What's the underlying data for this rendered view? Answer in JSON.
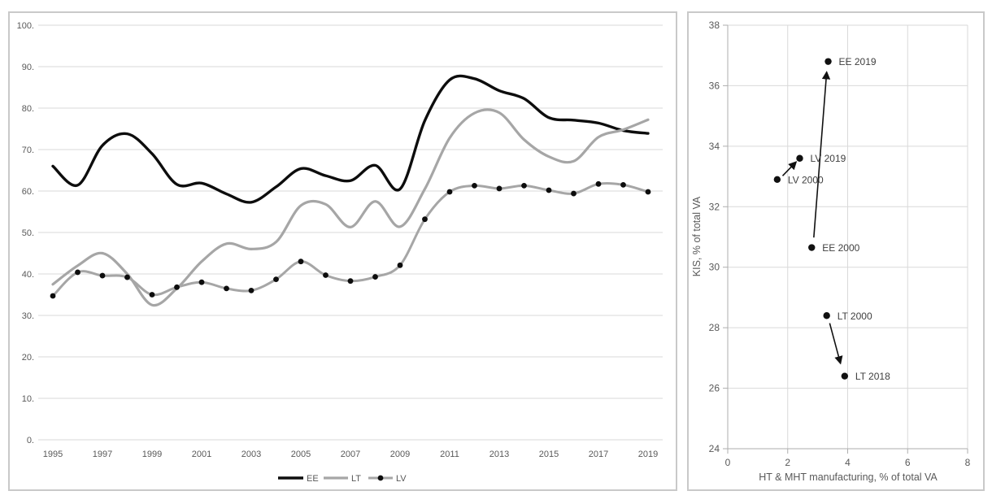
{
  "chart_data": [
    {
      "type": "line",
      "title": "",
      "xlabel": "",
      "ylabel": "",
      "ylim": [
        0,
        100
      ],
      "grid": true,
      "legend_position": "bottom-center",
      "x": [
        1995,
        1996,
        1997,
        1998,
        1999,
        2000,
        2001,
        2002,
        2003,
        2004,
        2005,
        2006,
        2007,
        2008,
        2009,
        2010,
        2011,
        2012,
        2013,
        2014,
        2015,
        2016,
        2017,
        2018,
        2019
      ],
      "xticks": [
        1995,
        1997,
        1999,
        2001,
        2003,
        2005,
        2007,
        2009,
        2011,
        2013,
        2015,
        2017,
        2019
      ],
      "yticks": [
        {
          "value": 100,
          "label": "100."
        },
        {
          "value": 90,
          "label": "90."
        },
        {
          "value": 80,
          "label": "80."
        },
        {
          "value": 70,
          "label": "70."
        },
        {
          "value": 60,
          "label": "60."
        },
        {
          "value": 50,
          "label": "50."
        },
        {
          "value": 40,
          "label": "40."
        },
        {
          "value": 30,
          "label": "30."
        },
        {
          "value": 20,
          "label": "20."
        },
        {
          "value": 10,
          "label": "10."
        },
        {
          "value": 0,
          "label": "0."
        }
      ],
      "series": [
        {
          "name": "EE",
          "color": "#0d0d0d",
          "width": 3.4,
          "marker": false,
          "values": [
            66,
            61.4,
            71,
            73.8,
            69,
            61.6,
            61.9,
            59.3,
            57.3,
            61,
            65.4,
            63.7,
            62.5,
            66.2,
            60.5,
            77,
            86.8,
            87.1,
            84.2,
            82.3,
            77.7,
            77.1,
            76.4,
            74.6,
            73.9
          ]
        },
        {
          "name": "LT",
          "color": "#a6a6a6",
          "width": 3.2,
          "marker": false,
          "values": [
            37.5,
            42,
            45,
            40,
            32.5,
            36.5,
            43,
            47.3,
            46,
            47.7,
            56.5,
            56.8,
            51.3,
            57.5,
            51.4,
            60.5,
            72.8,
            78.8,
            78.9,
            72.4,
            68.3,
            67.2,
            73,
            74.8,
            77.2
          ]
        },
        {
          "name": "LV",
          "color": "#a6a6a6",
          "width": 3,
          "marker": true,
          "marker_color": "#0d0d0d",
          "values": [
            34.7,
            40.4,
            39.6,
            39.2,
            35,
            36.8,
            38,
            36.5,
            36,
            38.7,
            43,
            39.7,
            38.3,
            39.3,
            42.1,
            53.2,
            59.8,
            61.3,
            60.6,
            61.3,
            60.2,
            59.4,
            61.7,
            61.5,
            59.8
          ]
        }
      ],
      "style": {
        "gridline": "#d9d9d9",
        "tick_label_color": "#595959"
      }
    },
    {
      "type": "scatter",
      "title": "",
      "xlabel": "HT & MHT manufacturing, % of total VA",
      "ylabel": "KIS, % of total VA",
      "xlim": [
        0,
        8
      ],
      "ylim": [
        24,
        38
      ],
      "grid": true,
      "xticks": [
        0,
        2,
        4,
        6,
        8
      ],
      "yticks": [
        24,
        26,
        28,
        30,
        32,
        34,
        36,
        38
      ],
      "points": [
        {
          "label": "EE 2019",
          "x": 3.35,
          "y": 36.8
        },
        {
          "label": "LV 2019",
          "x": 2.4,
          "y": 33.6
        },
        {
          "label": "LV 2000",
          "x": 1.65,
          "y": 32.9
        },
        {
          "label": "EE 2000",
          "x": 2.8,
          "y": 30.65
        },
        {
          "label": "LT 2000",
          "x": 3.3,
          "y": 28.4
        },
        {
          "label": "LT 2018",
          "x": 3.9,
          "y": 26.4
        }
      ],
      "arrows": [
        {
          "name": "EE",
          "from": [
            2.87,
            30.98
          ],
          "to": [
            3.3,
            36.45
          ]
        },
        {
          "name": "LV",
          "from": [
            1.83,
            33.02
          ],
          "to": [
            2.28,
            33.48
          ]
        },
        {
          "name": "LT",
          "from": [
            3.4,
            28.15
          ],
          "to": [
            3.76,
            26.82
          ]
        }
      ],
      "style": {
        "gridline": "#d9d9d9",
        "axis": "#aeaeae",
        "point": "#111111",
        "arrow": "#111111",
        "tick_label_color": "#595959",
        "point_label_color": "#404040"
      }
    }
  ]
}
